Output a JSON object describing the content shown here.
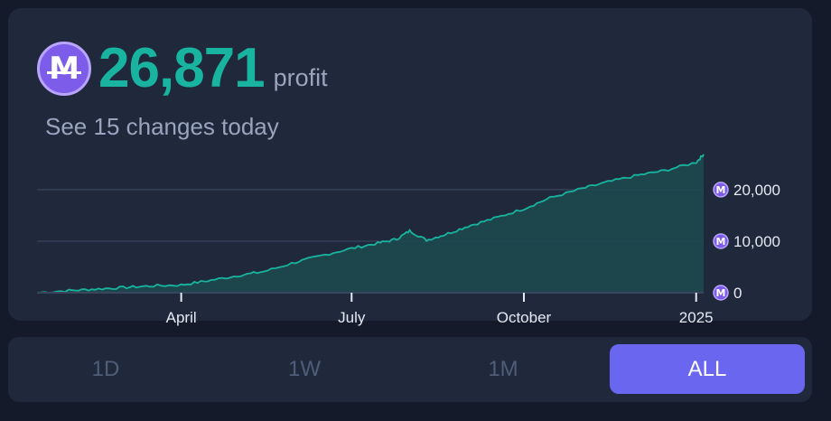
{
  "header": {
    "amount": "26,871",
    "amount_unit": "profit",
    "subtitle": "See 15 changes today",
    "currency_icon": "m-coin-icon",
    "currency_glyph": "M"
  },
  "colors": {
    "accent": "#19b49f",
    "fill": "#1c4a50",
    "coin": "#7c5ce8",
    "active_tab": "#6a66ef"
  },
  "tabs": [
    {
      "label": "1D",
      "active": false
    },
    {
      "label": "1W",
      "active": false
    },
    {
      "label": "1M",
      "active": false
    },
    {
      "label": "ALL",
      "active": true
    }
  ],
  "chart_data": {
    "type": "area",
    "x": [
      "2024-01-15",
      "2024-02-01",
      "2024-02-15",
      "2024-03-01",
      "2024-03-15",
      "2024-04-01",
      "2024-04-15",
      "2024-05-01",
      "2024-05-15",
      "2024-06-01",
      "2024-06-15",
      "2024-07-01",
      "2024-07-15",
      "2024-07-25",
      "2024-08-01",
      "2024-08-10",
      "2024-08-20",
      "2024-09-01",
      "2024-09-15",
      "2024-10-01",
      "2024-10-15",
      "2024-11-01",
      "2024-11-15",
      "2024-12-01",
      "2024-12-15",
      "2025-01-01",
      "2025-01-05"
    ],
    "series": [
      {
        "values": [
          0,
          400,
          700,
          1000,
          1300,
          1500,
          2300,
          3300,
          4100,
          5900,
          7200,
          8600,
          9600,
          10400,
          12000,
          10200,
          11300,
          12900,
          14400,
          16300,
          18400,
          20200,
          21500,
          22800,
          23700,
          25300,
          26871
        ]
      }
    ],
    "y_ticks": [
      0,
      10000,
      20000
    ],
    "y_tick_labels": [
      "0",
      "10,000",
      "20,000"
    ],
    "x_ticks": [
      "2024-04-01",
      "2024-07-01",
      "2024-10-01",
      "2025-01-01"
    ],
    "x_tick_labels": [
      "April",
      "July",
      "October",
      "2025"
    ],
    "ylim": [
      0,
      27000
    ],
    "grid": true,
    "title": "",
    "xlabel": "",
    "ylabel": ""
  }
}
